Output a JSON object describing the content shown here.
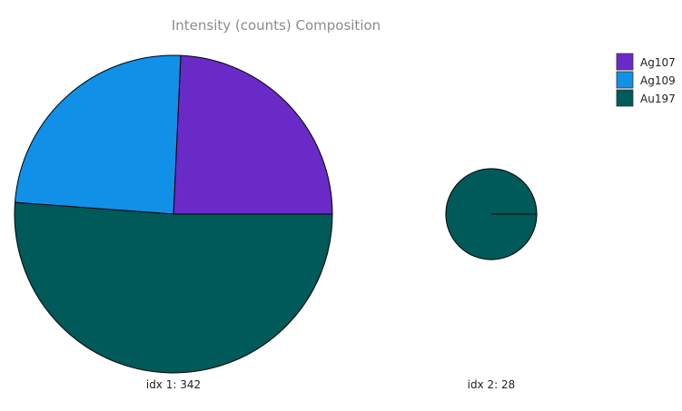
{
  "chart_data": {
    "type": "pie",
    "title": "Intensity (counts) Composition",
    "legend": {
      "placement": "top-right",
      "entries": [
        {
          "name": "Ag107",
          "color": "#6a2ac7"
        },
        {
          "name": "Ag109",
          "color": "#1190e8"
        },
        {
          "name": "Au197",
          "color": "#005a5a"
        }
      ]
    },
    "pies": [
      {
        "label": "idx 1: 342",
        "total": 342,
        "slices": [
          {
            "name": "Ag107",
            "value": 83
          },
          {
            "name": "Ag109",
            "value": 84
          },
          {
            "name": "Au197",
            "value": 175
          }
        ]
      },
      {
        "label": "idx 2: 28",
        "total": 28,
        "slices": [
          {
            "name": "Ag107",
            "value": 0
          },
          {
            "name": "Ag109",
            "value": 0
          },
          {
            "name": "Au197",
            "value": 28
          }
        ]
      }
    ]
  }
}
